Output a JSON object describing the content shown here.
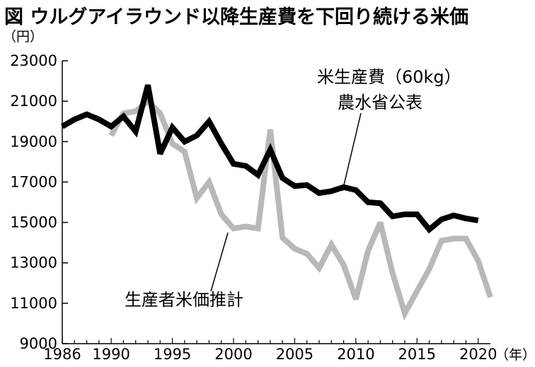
{
  "title": "図 ウルグアイラウンド以降生産費を下回り続ける米価",
  "chart_data": {
    "type": "line",
    "title": "図 ウルグアイラウンド以降生産費を下回り続ける米価",
    "xlabel": "（年）",
    "ylabel": "（円）",
    "xlim": [
      1986,
      2021
    ],
    "ylim": [
      9000,
      23000
    ],
    "yticks": [
      9000,
      11000,
      13000,
      15000,
      17000,
      19000,
      21000,
      23000
    ],
    "xticks": [
      1986,
      1990,
      1995,
      2000,
      2005,
      2010,
      2015,
      2020
    ],
    "grid": false,
    "legend": "direct labels",
    "series": [
      {
        "name": "米生産費（60kg）農水省公表",
        "label_lines": [
          "米生産費（60kg）",
          "農水省公表"
        ],
        "color": "#000000",
        "x": [
          1986,
          1987,
          1988,
          1989,
          1990,
          1991,
          1992,
          1993,
          1994,
          1995,
          1996,
          1997,
          1998,
          1999,
          2000,
          2001,
          2002,
          2003,
          2004,
          2005,
          2006,
          2007,
          2008,
          2009,
          2010,
          2011,
          2012,
          2013,
          2014,
          2015,
          2016,
          2017,
          2018,
          2019,
          2020
        ],
        "values": [
          19750,
          20100,
          20350,
          20100,
          19750,
          20250,
          19500,
          21800,
          18400,
          19700,
          19000,
          19300,
          20000,
          18900,
          17900,
          17800,
          17350,
          18600,
          17200,
          16800,
          16850,
          16450,
          16550,
          16750,
          16600,
          16000,
          15950,
          15300,
          15400,
          15400,
          14650,
          15150,
          15350,
          15200,
          15100
        ]
      },
      {
        "name": "生産者米価推計",
        "label_lines": [
          "生産者米価推計"
        ],
        "color": "#b8b8b8",
        "x": [
          1990,
          1991,
          1992,
          1993,
          1994,
          1995,
          1996,
          1997,
          1998,
          1999,
          2000,
          2001,
          2002,
          2003,
          2004,
          2005,
          2006,
          2007,
          2008,
          2009,
          2010,
          2011,
          2012,
          2013,
          2014,
          2015,
          2016,
          2017,
          2018,
          2019,
          2020,
          2021
        ],
        "values": [
          19300,
          20400,
          20500,
          21000,
          20400,
          18900,
          18500,
          16200,
          17000,
          15400,
          14700,
          14800,
          14700,
          19600,
          14250,
          13700,
          13450,
          12750,
          13900,
          12900,
          11200,
          13600,
          15000,
          12500,
          10500,
          11600,
          12700,
          14100,
          14200,
          14200,
          13100,
          11300
        ]
      }
    ]
  }
}
